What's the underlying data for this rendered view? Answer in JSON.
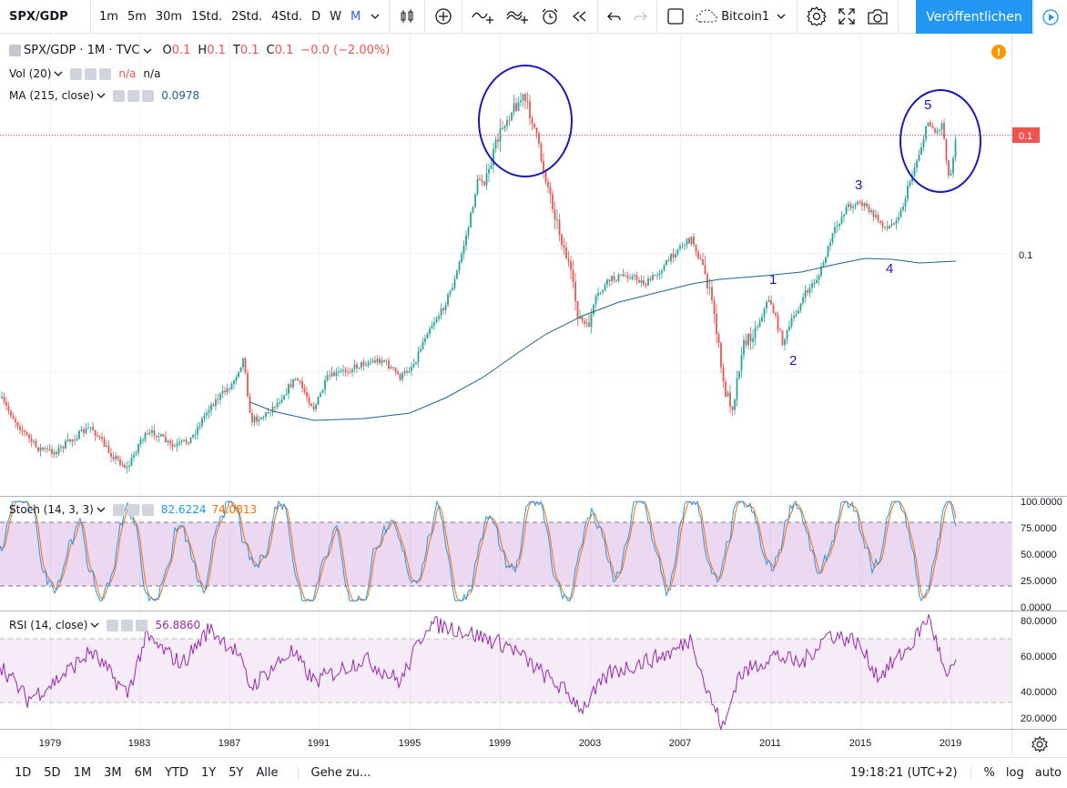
{
  "toolbar": {
    "symbol": "SPX/GDP",
    "intervals": [
      "1m",
      "5m",
      "30m",
      "1Std.",
      "2Std.",
      "4Std.",
      "D",
      "W",
      "M"
    ],
    "active_interval": "M",
    "layout_name": "Bitcoin1",
    "publish_label": "Veröffentlichen"
  },
  "legend": {
    "title": "SPX/GDP · 1M · TVC",
    "o_label": "O",
    "o_value": "0.1",
    "h_label": "H",
    "h_value": "0.1",
    "t_label": "T",
    "t_value": "0.1",
    "c_label": "C",
    "c_value": "0.1",
    "change": "−0.0 (−2.00%)",
    "vol_label": "Vol (20)",
    "vol_value1": "n/a",
    "vol_value2": "n/a",
    "ma_label": "MA (215, close)",
    "ma_value": "0.0978"
  },
  "alert_icon": "!",
  "price_axis": {
    "current_price_label": "0.1",
    "tick_label": "0.1"
  },
  "wave_labels": [
    "1",
    "2",
    "3",
    "4",
    "5"
  ],
  "stoch": {
    "label": "Stoch (14, 3, 3)",
    "k_value": "82.6224",
    "d_value": "74.0813",
    "ticks": [
      "100.0000",
      "75.0000",
      "50.0000",
      "25.0000",
      "0.0000"
    ]
  },
  "rsi": {
    "label": "RSI (14, close)",
    "value": "56.8860",
    "ticks": [
      "80.0000",
      "60.0000",
      "40.0000",
      "20.0000"
    ]
  },
  "time_axis": [
    "1979",
    "1983",
    "1987",
    "1991",
    "1995",
    "1999",
    "2003",
    "2007",
    "2011",
    "2015",
    "2019"
  ],
  "bottombar": {
    "ranges": [
      "1D",
      "5D",
      "1M",
      "3M",
      "6M",
      "YTD",
      "1Y",
      "5Y",
      "Alle"
    ],
    "goto_label": "Gehe zu...",
    "time": "19:18:21 (UTC+2)",
    "percent": "%",
    "log": "log",
    "auto": "auto"
  },
  "colors": {
    "up": "#26a69a",
    "down": "#ef5350",
    "ma": "#21638f",
    "stoch_k": "#2196f3",
    "stoch_d": "#ff6d00",
    "rsi": "#9c27b0",
    "ellipse": "#1a1ab8",
    "accent": "#2196f3"
  }
}
